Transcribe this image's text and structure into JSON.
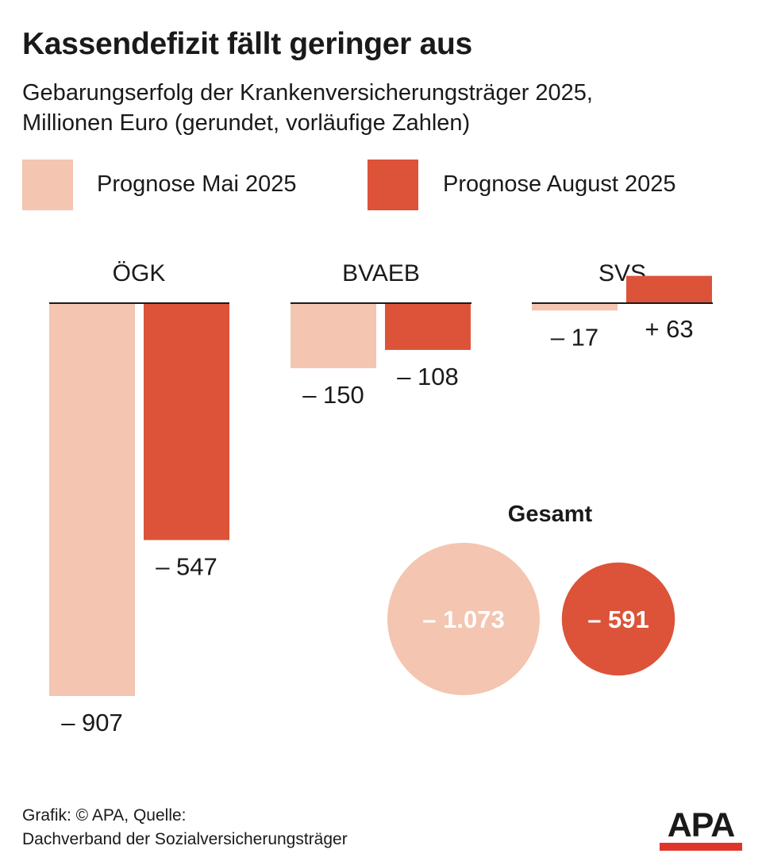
{
  "header": {
    "title": "Kassendefizit fällt geringer aus",
    "subtitle_line1": "Gebarungserfolg der Krankenversicherungsträger 2025,",
    "subtitle_line2": "Millionen Euro (gerundet, vorläufige Zahlen)"
  },
  "legend": [
    {
      "label": "Prognose Mai 2025",
      "color": "#f4c5b0"
    },
    {
      "label": "Prognose August 2025",
      "color": "#dc5339"
    }
  ],
  "chart_data": {
    "type": "bar",
    "title": "Kassendefizit fällt geringer aus",
    "unit": "Millionen Euro",
    "categories": [
      "ÖGK",
      "BVAEB",
      "SVS"
    ],
    "series": [
      {
        "name": "Prognose Mai 2025",
        "values": [
          -907,
          -150,
          -17
        ],
        "labels": [
          "– 907",
          "– 150",
          "– 17"
        ],
        "color": "#f4c5b0"
      },
      {
        "name": "Prognose August 2025",
        "values": [
          -547,
          -108,
          63
        ],
        "labels": [
          "– 547",
          "– 108",
          "+ 63"
        ],
        "color": "#dc5339"
      }
    ],
    "total": {
      "title": "Gesamt",
      "values": [
        -1073,
        -591
      ],
      "labels": [
        "– 1.073",
        "– 591"
      ]
    },
    "legend_position": "top-left"
  },
  "footer": {
    "source_line1": "Grafik: © APA, Quelle:",
    "source_line2": "Dachverband der Sozialversicherungsträger",
    "logo_text": "APA",
    "logo_bar_color": "#e0352b"
  }
}
